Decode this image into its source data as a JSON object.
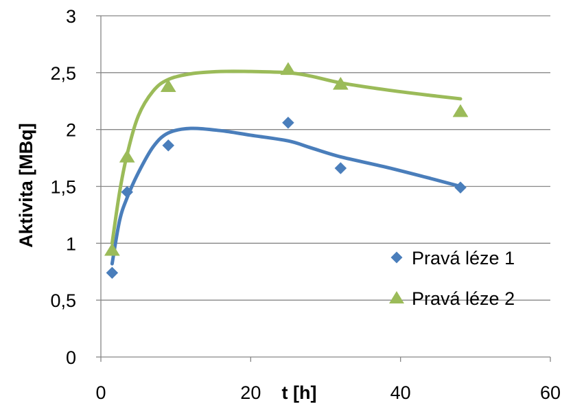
{
  "chart_data": {
    "type": "scatter",
    "xlabel": "t [h]",
    "ylabel": "Aktivita [MBq]",
    "xlim": [
      0,
      60
    ],
    "ylim": [
      0,
      3
    ],
    "x_ticks": [
      "0",
      "20",
      "40",
      "60"
    ],
    "y_ticks": [
      "0",
      "0,5",
      "1",
      "1,5",
      "2",
      "2,5",
      "3"
    ],
    "grid": "horizontal",
    "legend_position": "bottom-right",
    "series": [
      {
        "name": "Pravá léze 1",
        "marker": "diamond",
        "color": "#4a7ebb",
        "x": [
          1.5,
          3.5,
          9,
          25,
          32,
          48
        ],
        "y": [
          0.74,
          1.45,
          1.86,
          2.06,
          1.66,
          1.49
        ],
        "trend": {
          "x": [
            1.5,
            2.5,
            3.5,
            5,
            7,
            9,
            12,
            16,
            20,
            25,
            28,
            32,
            38,
            44,
            48
          ],
          "y": [
            0.82,
            1.2,
            1.4,
            1.62,
            1.85,
            1.97,
            2.01,
            1.99,
            1.95,
            1.9,
            1.84,
            1.76,
            1.67,
            1.57,
            1.5
          ]
        }
      },
      {
        "name": "Pravá léze 2",
        "marker": "triangle",
        "color": "#9bbb59",
        "x": [
          1.5,
          3.5,
          9,
          25,
          32,
          48
        ],
        "y": [
          0.94,
          1.76,
          2.38,
          2.53,
          2.4,
          2.16
        ],
        "trend": {
          "x": [
            1.5,
            2.5,
            3.5,
            5,
            7,
            9,
            12,
            16,
            20,
            25,
            28,
            32,
            38,
            44,
            48
          ],
          "y": [
            1.0,
            1.45,
            1.78,
            2.12,
            2.34,
            2.44,
            2.49,
            2.51,
            2.51,
            2.5,
            2.47,
            2.41,
            2.35,
            2.3,
            2.27
          ]
        }
      }
    ]
  }
}
